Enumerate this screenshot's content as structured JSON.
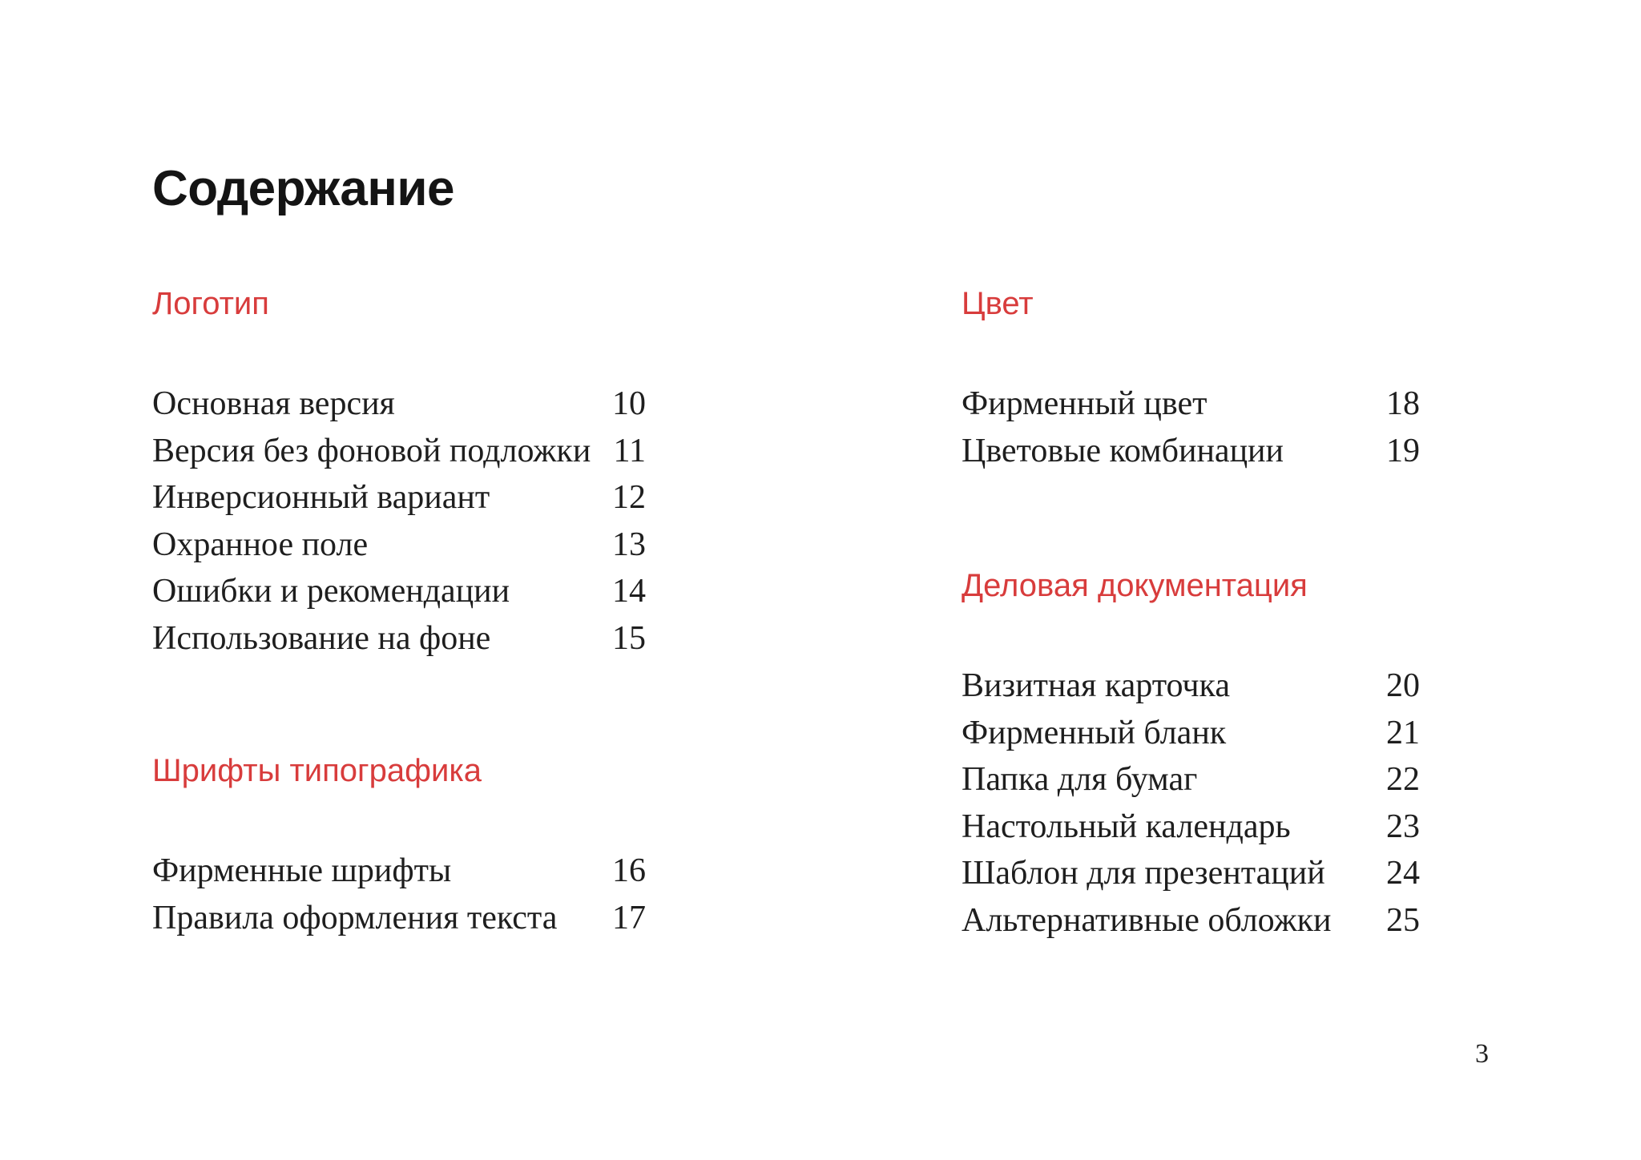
{
  "page": {
    "title": "Содержание",
    "footer_page_number": "3"
  },
  "colors": {
    "accent_red": "#d83c3c",
    "body_text": "#1e1e1e",
    "title_text": "#141414",
    "background": "#ffffff"
  },
  "columns": {
    "left": {
      "sections": [
        {
          "heading": "Логотип",
          "items": [
            {
              "label": "Основная версия",
              "page": "10"
            },
            {
              "label": "Версия без фоновой подложки",
              "page": "11"
            },
            {
              "label": "Инверсионный вариант",
              "page": "12"
            },
            {
              "label": "Охранное поле",
              "page": "13"
            },
            {
              "label": "Ошибки и рекомендации",
              "page": "14"
            },
            {
              "label": "Использование на фоне",
              "page": "15"
            }
          ]
        },
        {
          "heading": "Шрифты типографика",
          "items": [
            {
              "label": "Фирменные шрифты",
              "page": "16"
            },
            {
              "label": "Правила оформления текста",
              "page": "17"
            }
          ]
        }
      ]
    },
    "right": {
      "sections": [
        {
          "heading": "Цвет",
          "items": [
            {
              "label": "Фирменный цвет",
              "page": "18"
            },
            {
              "label": "Цветовые комбинации",
              "page": "19"
            }
          ]
        },
        {
          "heading": "Деловая документация",
          "items": [
            {
              "label": "Визитная карточка",
              "page": "20"
            },
            {
              "label": "Фирменный бланк",
              "page": "21"
            },
            {
              "label": "Папка для бумаг",
              "page": "22"
            },
            {
              "label": "Настольный календарь",
              "page": "23"
            },
            {
              "label": "Шаблон для презентаций",
              "page": "24"
            },
            {
              "label": "Альтернативные обложки",
              "page": "25"
            }
          ]
        }
      ]
    }
  }
}
